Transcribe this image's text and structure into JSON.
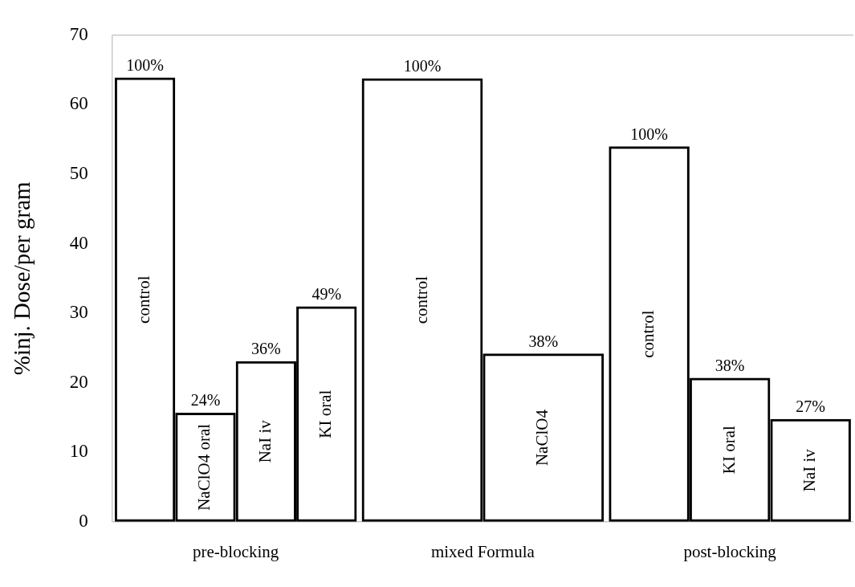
{
  "chart_data": {
    "type": "bar",
    "ylabel": "%inj. Dose/per gram",
    "categories": [
      "pre-blocking",
      "mixed Formula",
      "post-blocking"
    ],
    "series": [
      {
        "color": "#000000",
        "values": [
          63.9,
          63.8,
          54.0
        ]
      },
      {
        "color": "#000000",
        "values": [
          15.7,
          24.2,
          20.7
        ]
      },
      {
        "color": "#000000",
        "values": [
          23.1,
          null,
          14.8
        ]
      },
      {
        "color": "#000000",
        "values": [
          31.0,
          null,
          null
        ]
      }
    ],
    "annotations": [
      "100%",
      "24%",
      "36%",
      "49%",
      "100%",
      "38%",
      "100%",
      "38%",
      "27%",
      "control",
      "NaClO4 oral",
      "NaI iv",
      "KI oral",
      "control",
      "NaClO4",
      "control",
      "KI oral",
      "NaI iv"
    ],
    "ylim": [
      0,
      70
    ],
    "yticks": [
      0,
      10,
      20,
      30,
      40,
      50,
      60,
      70
    ],
    "grid": false,
    "legend": false
  }
}
